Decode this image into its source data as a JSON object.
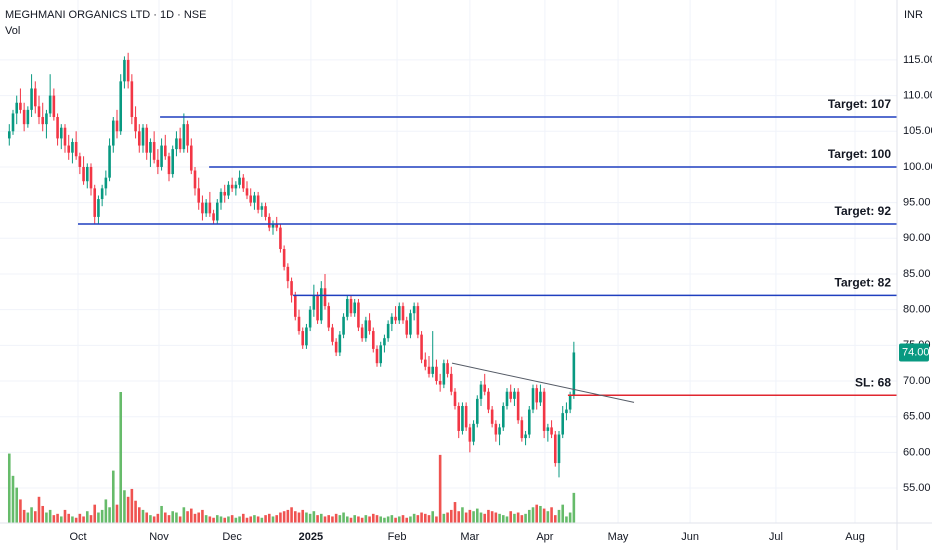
{
  "chart_data": {
    "type": "candlestick",
    "title": "MEGHMANI ORGANICS LTD · 1D · NSE",
    "volume_label": "Vol",
    "currency": "INR",
    "up_color": "#089981",
    "down_color": "#f23645",
    "volume_up_color": "#66bb6a",
    "volume_down_color": "#ef5350",
    "ylim": [
      50.1,
      123.4
    ],
    "yticks": [
      {
        "value": 55,
        "label": "55.00"
      },
      {
        "value": 60,
        "label": "60.00"
      },
      {
        "value": 65,
        "label": "65.00"
      },
      {
        "value": 70,
        "label": "70.00"
      },
      {
        "value": 75,
        "label": "75.00"
      },
      {
        "value": 80,
        "label": "80.00"
      },
      {
        "value": 85,
        "label": "85.00"
      },
      {
        "value": 90,
        "label": "90.00"
      },
      {
        "value": 95,
        "label": "95.00"
      },
      {
        "value": 100,
        "label": "100.00"
      },
      {
        "value": 105,
        "label": "105.00"
      },
      {
        "value": 110,
        "label": "110.00"
      },
      {
        "value": 115,
        "label": "115.00"
      }
    ],
    "xlim": [
      -2.5,
      239
    ],
    "xticks": [
      {
        "value": 18.5,
        "label": "Oct"
      },
      {
        "value": 40.3,
        "label": "Nov"
      },
      {
        "value": 60,
        "label": "Dec"
      },
      {
        "value": 81.2,
        "label": "2025"
      },
      {
        "value": 104.4,
        "label": "Feb"
      },
      {
        "value": 124,
        "label": "Mar"
      },
      {
        "value": 144.2,
        "label": "Apr"
      },
      {
        "value": 163.9,
        "label": "May"
      },
      {
        "value": 183.3,
        "label": "Jun"
      },
      {
        "value": 206.4,
        "label": "Jul"
      },
      {
        "value": 227.7,
        "label": "Aug"
      }
    ],
    "grid": true,
    "candles": [
      [
        104,
        106,
        103,
        105
      ],
      [
        105,
        108,
        104.5,
        107.5
      ],
      [
        107.5,
        110,
        106,
        109
      ],
      [
        109,
        111,
        107.5,
        108
      ],
      [
        108,
        109,
        105,
        106
      ],
      [
        106,
        108.5,
        105.5,
        108
      ],
      [
        108,
        113,
        107,
        111
      ],
      [
        111,
        112,
        107.5,
        108.5
      ],
      [
        108.5,
        110,
        106,
        107
      ],
      [
        107,
        109,
        105,
        106
      ],
      [
        106,
        108,
        104,
        107.5
      ],
      [
        107.5,
        113,
        107,
        110
      ],
      [
        110,
        111,
        106.5,
        107
      ],
      [
        107,
        107.5,
        103,
        104
      ],
      [
        104,
        106,
        102.5,
        105.5
      ],
      [
        105.5,
        106,
        102,
        103
      ],
      [
        103,
        104.5,
        101,
        102
      ],
      [
        102,
        104,
        100.5,
        103.5
      ],
      [
        103.5,
        105,
        101,
        101.5
      ],
      [
        101.5,
        102,
        99,
        100
      ],
      [
        100,
        101.5,
        97.5,
        98
      ],
      [
        98,
        100.5,
        97,
        100
      ],
      [
        100,
        100.5,
        96,
        97
      ],
      [
        97,
        97.5,
        92,
        93
      ],
      [
        93,
        96,
        92,
        95.5
      ],
      [
        95.5,
        97.5,
        94.5,
        97
      ],
      [
        97,
        99.5,
        96,
        98.5
      ],
      [
        98.5,
        104,
        98,
        103
      ],
      [
        103,
        107,
        102,
        106.5
      ],
      [
        106.5,
        108,
        104,
        105
      ],
      [
        105,
        113,
        104.5,
        112
      ],
      [
        112,
        115.5,
        111,
        115
      ],
      [
        115,
        116,
        111,
        112
      ],
      [
        112,
        113,
        106,
        107
      ],
      [
        107,
        108.5,
        104,
        105
      ],
      [
        105,
        106,
        102,
        103
      ],
      [
        103,
        106,
        102,
        105.5
      ],
      [
        105.5,
        106,
        101,
        102
      ],
      [
        102,
        104,
        100,
        103.5
      ],
      [
        103.5,
        105,
        100.5,
        101
      ],
      [
        101,
        102.5,
        99,
        100
      ],
      [
        100,
        104,
        99.5,
        103
      ],
      [
        103,
        104.5,
        101,
        101.5
      ],
      [
        101.5,
        102,
        98,
        99
      ],
      [
        99,
        103,
        98.5,
        102.5
      ],
      [
        102.5,
        105,
        101.5,
        104
      ],
      [
        104,
        105.5,
        102,
        102.5
      ],
      [
        102.5,
        107.5,
        102,
        106
      ],
      [
        106,
        106.5,
        102,
        103
      ],
      [
        103,
        104,
        99,
        99.5
      ],
      [
        99.5,
        100,
        96,
        97
      ],
      [
        97,
        98.5,
        94,
        95
      ],
      [
        95,
        96,
        92.5,
        93.5
      ],
      [
        93.5,
        95.5,
        93,
        95
      ],
      [
        95,
        96.5,
        93,
        93.5
      ],
      [
        93.5,
        94,
        92,
        92.5
      ],
      [
        92.5,
        95.5,
        92,
        95
      ],
      [
        95,
        97,
        94,
        96.5
      ],
      [
        96.5,
        97.5,
        95,
        96
      ],
      [
        96,
        98,
        95.5,
        97.5
      ],
      [
        97.5,
        98.5,
        96.5,
        97
      ],
      [
        97,
        98,
        96,
        97.5
      ],
      [
        97.5,
        99.5,
        97,
        98.5
      ],
      [
        98.5,
        99,
        96.5,
        97
      ],
      [
        97,
        98,
        95.5,
        96
      ],
      [
        96,
        97,
        94.5,
        95
      ],
      [
        95,
        96.5,
        94,
        96
      ],
      [
        96,
        96.5,
        93.5,
        94
      ],
      [
        94,
        95,
        93,
        94.5
      ],
      [
        94.5,
        95,
        92.5,
        93
      ],
      [
        93,
        93.5,
        91,
        91.5
      ],
      [
        91.5,
        92.5,
        90.5,
        92
      ],
      [
        92,
        93,
        91,
        91.5
      ],
      [
        91.5,
        92,
        88,
        88.5
      ],
      [
        88.5,
        89,
        85.5,
        86
      ],
      [
        86,
        86.5,
        83,
        84
      ],
      [
        84,
        84.5,
        81,
        82
      ],
      [
        82,
        82.5,
        78.5,
        79
      ],
      [
        79,
        80,
        76.5,
        77
      ],
      [
        77,
        77.5,
        74.5,
        75
      ],
      [
        75,
        78,
        74.5,
        77.5
      ],
      [
        77.5,
        80.5,
        77,
        80
      ],
      [
        80,
        83.5,
        79,
        82
      ],
      [
        82,
        82.5,
        78,
        78.5
      ],
      [
        78.5,
        84,
        78,
        83
      ],
      [
        83,
        85,
        80,
        80.5
      ],
      [
        80.5,
        81,
        77,
        77.5
      ],
      [
        77.5,
        78,
        75,
        75.5
      ],
      [
        75.5,
        76,
        73.5,
        74
      ],
      [
        74,
        77,
        73.5,
        76.5
      ],
      [
        76.5,
        79.5,
        76,
        79
      ],
      [
        79,
        82,
        78.5,
        81.5
      ],
      [
        81.5,
        82,
        79,
        79.5
      ],
      [
        79.5,
        81.5,
        79,
        81
      ],
      [
        81,
        81.5,
        77,
        77.5
      ],
      [
        77.5,
        78,
        75.5,
        76
      ],
      [
        76,
        79,
        75.5,
        78.5
      ],
      [
        78.5,
        79.5,
        76.5,
        77
      ],
      [
        77,
        77.5,
        74,
        74.5
      ],
      [
        74.5,
        75,
        72,
        72.5
      ],
      [
        72.5,
        75.5,
        72,
        75
      ],
      [
        75,
        76.5,
        74,
        76
      ],
      [
        76,
        78.5,
        75.5,
        78
      ],
      [
        78,
        79.5,
        77,
        79
      ],
      [
        79,
        80.5,
        78,
        78.5
      ],
      [
        78.5,
        81,
        78,
        80.5
      ],
      [
        80.5,
        81,
        78,
        78.5
      ],
      [
        78.5,
        79,
        76,
        76.5
      ],
      [
        76.5,
        80,
        76,
        79.5
      ],
      [
        79.5,
        81,
        78.5,
        80.5
      ],
      [
        80.5,
        81,
        76,
        76.5
      ],
      [
        76.5,
        77,
        72.5,
        73
      ],
      [
        73,
        74,
        71.5,
        72
      ],
      [
        72,
        73.5,
        70.5,
        71
      ],
      [
        71,
        77,
        70.5,
        72
      ],
      [
        72,
        73,
        69.5,
        70
      ],
      [
        70,
        71,
        68.5,
        69.5
      ],
      [
        69.5,
        73,
        69,
        72.5
      ],
      [
        72.5,
        73,
        70.5,
        71
      ],
      [
        71,
        72,
        68,
        68.5
      ],
      [
        68.5,
        69,
        66,
        66.5
      ],
      [
        66.5,
        67,
        62,
        63
      ],
      [
        63,
        67,
        62.5,
        66.5
      ],
      [
        66.5,
        67,
        63,
        63.5
      ],
      [
        63.5,
        64,
        60,
        61.5
      ],
      [
        61.5,
        64.5,
        61,
        64
      ],
      [
        64,
        68,
        63.5,
        67.5
      ],
      [
        67.5,
        70,
        66.5,
        69.5
      ],
      [
        69.5,
        71,
        68,
        68.5
      ],
      [
        68.5,
        69,
        65.5,
        66
      ],
      [
        66,
        66.5,
        63.5,
        64
      ],
      [
        64,
        64.5,
        61.5,
        62.5
      ],
      [
        62.5,
        64,
        61,
        63.5
      ],
      [
        63.5,
        67,
        63,
        66.5
      ],
      [
        66.5,
        69,
        66,
        68.5
      ],
      [
        68.5,
        69.5,
        67,
        67.5
      ],
      [
        67.5,
        69,
        66.5,
        68.5
      ],
      [
        68.5,
        69,
        64,
        64.5
      ],
      [
        64.5,
        65,
        61.5,
        62
      ],
      [
        62,
        63,
        61,
        62.5
      ],
      [
        62.5,
        66.5,
        62,
        66
      ],
      [
        66,
        69.5,
        65.5,
        69
      ],
      [
        69,
        69.5,
        66,
        67
      ],
      [
        67,
        69.5,
        66.5,
        68.5
      ],
      [
        68.5,
        69,
        62,
        63
      ],
      [
        63,
        64,
        61.5,
        63.5
      ],
      [
        63.5,
        64.5,
        62,
        62.5
      ],
      [
        62.5,
        63,
        58,
        58.5
      ],
      [
        58.5,
        63,
        56.5,
        62.5
      ],
      [
        62.5,
        66.5,
        62,
        65.5
      ],
      [
        65.5,
        67,
        64.5,
        66
      ],
      [
        66,
        68.5,
        65.5,
        68
      ],
      [
        68,
        75.5,
        67.5,
        74
      ]
    ],
    "volume": [
      53,
      36,
      27,
      18,
      10,
      8,
      12,
      9,
      20,
      13,
      8,
      10,
      6,
      7,
      5,
      10,
      7,
      5,
      4,
      7,
      5,
      9,
      6,
      14,
      8,
      10,
      18,
      12,
      40,
      14,
      100,
      25,
      20,
      26,
      17,
      12,
      10,
      8,
      6,
      5,
      7,
      13,
      8,
      6,
      9,
      8,
      5,
      12,
      9,
      11,
      7,
      8,
      10,
      6,
      5,
      4,
      6,
      5,
      4,
      5,
      6,
      4,
      5,
      7,
      4,
      5,
      6,
      5,
      4,
      6,
      7,
      5,
      6,
      8,
      9,
      10,
      12,
      9,
      8,
      10,
      8,
      7,
      9,
      6,
      7,
      5,
      6,
      5,
      7,
      6,
      8,
      5,
      4,
      6,
      5,
      4,
      6,
      5,
      7,
      6,
      5,
      4,
      5,
      6,
      4,
      5,
      6,
      4,
      5,
      7,
      6,
      8,
      7,
      6,
      9,
      5,
      52,
      7,
      8,
      10,
      16,
      9,
      12,
      8,
      10,
      9,
      11,
      8,
      7,
      10,
      9,
      8,
      7,
      6,
      5,
      9,
      7,
      8,
      6,
      7,
      10,
      12,
      14,
      13,
      11,
      9,
      12,
      6,
      10,
      14,
      5,
      8,
      23
    ],
    "lines": [
      {
        "label": "Target: 107",
        "value": 107,
        "x0": 40.6,
        "color": "#1f3fbf"
      },
      {
        "label": "Target: 100",
        "value": 100,
        "x0": 53.8,
        "color": "#1f3fbf"
      },
      {
        "label": "Target: 92",
        "value": 92,
        "x0": 18.5,
        "color": "#1f3fbf"
      },
      {
        "label": "Target: 82",
        "value": 82,
        "x0": 76.4,
        "color": "#1f3fbf"
      },
      {
        "label": "SL: 68",
        "value": 68,
        "x0": 150.4,
        "color": "#e0262f"
      }
    ],
    "trendline": {
      "x": [
        119.2,
        168.2
      ],
      "y": [
        72.5,
        67
      ],
      "color": "#555b66"
    },
    "last_price": {
      "value": 74,
      "label": "74.00"
    }
  }
}
